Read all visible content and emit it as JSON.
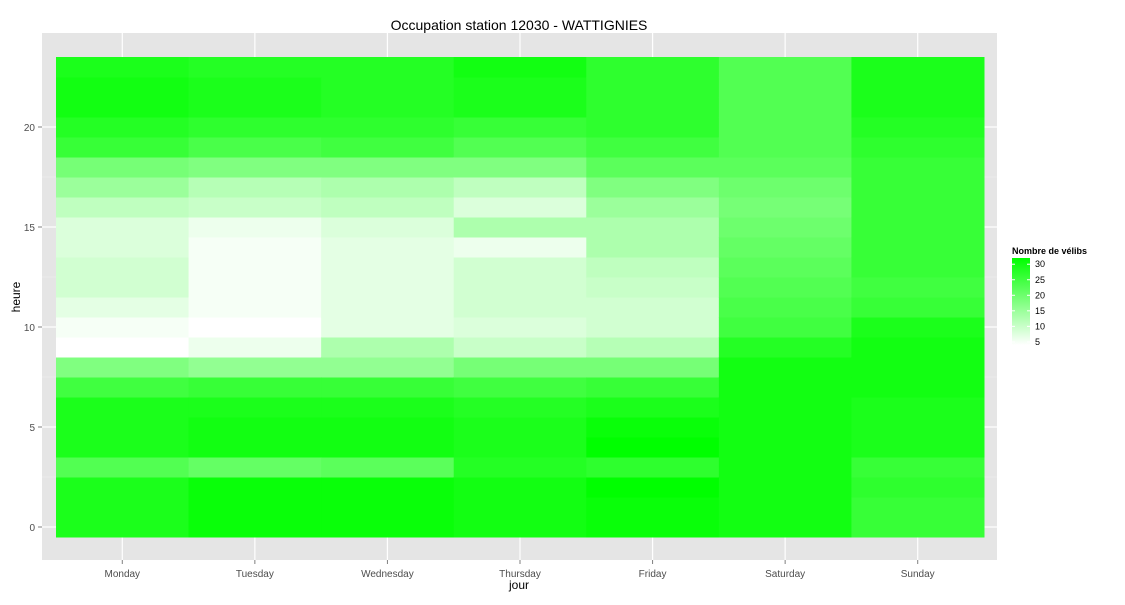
{
  "chart_data": {
    "type": "heatmap",
    "title": "Occupation station 12030 - WATTIGNIES",
    "xlabel": "jour",
    "ylabel": "heure",
    "x_categories": [
      "Monday",
      "Tuesday",
      "Wednesday",
      "Thursday",
      "Friday",
      "Saturday",
      "Sunday"
    ],
    "y_categories": [
      0,
      1,
      2,
      3,
      4,
      5,
      6,
      7,
      8,
      9,
      10,
      11,
      12,
      13,
      14,
      15,
      16,
      17,
      18,
      19,
      20,
      21,
      22,
      23
    ],
    "y_ticks": [
      0,
      5,
      10,
      15,
      20
    ],
    "ylim": [
      -0.5,
      23.5
    ],
    "value_range": [
      4,
      32
    ],
    "color_low": "#ffffff",
    "color_high": "#00ff00",
    "panel_background": "#e5e5e5",
    "grid": true,
    "legend": {
      "title": "Nombre de vélibs",
      "position": "right",
      "ticks": [
        5,
        10,
        15,
        20,
        25,
        30
      ]
    },
    "columns": [
      {
        "day": "Monday",
        "values": [
          29,
          29,
          29,
          23,
          29,
          29,
          29,
          25,
          18,
          4,
          5,
          7,
          9,
          9,
          8,
          8,
          11,
          15,
          19,
          26,
          28,
          30,
          30,
          29
        ]
      },
      {
        "day": "Tuesday",
        "values": [
          31,
          31,
          31,
          21,
          30,
          30,
          29,
          26,
          16,
          6,
          4,
          5,
          5,
          5,
          5,
          6,
          10,
          12,
          18,
          24,
          27,
          29,
          29,
          28
        ]
      },
      {
        "day": "Wednesday",
        "values": [
          31,
          31,
          31,
          22,
          30,
          30,
          29,
          26,
          16,
          13,
          7,
          7,
          7,
          7,
          7,
          8,
          11,
          13,
          18,
          25,
          27,
          28,
          28,
          28
        ]
      },
      {
        "day": "Thursday",
        "values": [
          30,
          30,
          30,
          28,
          29,
          29,
          28,
          25,
          19,
          10,
          8,
          9,
          9,
          9,
          6,
          13,
          8,
          11,
          18,
          23,
          26,
          29,
          29,
          30
        ]
      },
      {
        "day": "Friday",
        "values": [
          31,
          31,
          32,
          27,
          32,
          31,
          29,
          26,
          19,
          12,
          9,
          9,
          10,
          11,
          13,
          13,
          15,
          18,
          22,
          25,
          27,
          27,
          27,
          27
        ]
      },
      {
        "day": "Saturday",
        "values": [
          30,
          30,
          30,
          30,
          30,
          30,
          30,
          30,
          30,
          28,
          25,
          24,
          23,
          22,
          21,
          20,
          19,
          20,
          22,
          23,
          23,
          23,
          23,
          23
        ]
      },
      {
        "day": "Sunday",
        "values": [
          26,
          26,
          27,
          26,
          29,
          29,
          29,
          30,
          30,
          30,
          29,
          26,
          25,
          26,
          26,
          26,
          26,
          26,
          26,
          27,
          28,
          29,
          29,
          29
        ]
      }
    ]
  }
}
